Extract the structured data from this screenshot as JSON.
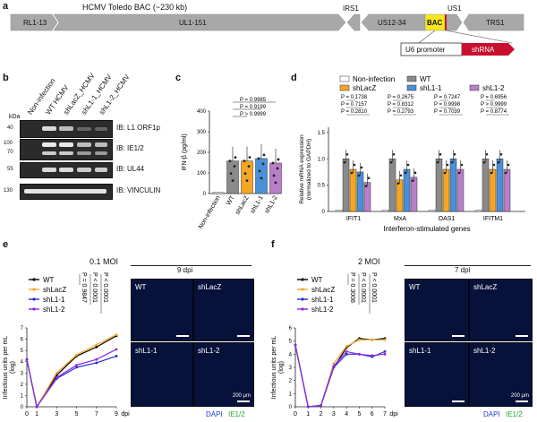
{
  "panel_a": {
    "letter": "a",
    "title": "HCMV Toledo BAC (~230 kb)",
    "segments": [
      "RL1-13",
      "UL1-151",
      "IRS1",
      "US12-34",
      "BAC",
      "US1",
      "TRS1"
    ],
    "promoter": "U6 promoter",
    "insert": "shRNA",
    "colors": {
      "genome": "#a8a8a8",
      "bac": "#f7e71c",
      "shrna": "#c8102e"
    }
  },
  "panel_b": {
    "letter": "b",
    "lanes": [
      "Non-infection",
      "WT HCMV",
      "shLacZ_HCMV",
      "shL1-1_HCMV",
      "shL1-2_HCMV"
    ],
    "kda_label": "kDa",
    "blots": [
      {
        "kda": [
          "40"
        ],
        "label": "IB: L1 ORF1p"
      },
      {
        "kda": [
          "100",
          "70"
        ],
        "label": "IB: IE1/2"
      },
      {
        "kda": [
          "55"
        ],
        "label": "IB: UL44"
      },
      {
        "kda": [
          "130"
        ],
        "label": "IB: VINCULIN"
      }
    ]
  },
  "panel_c": {
    "letter": "c",
    "chart_data": {
      "type": "bar",
      "ylabel": "IFN-β (pg/ml)",
      "ylim": [
        0,
        400
      ],
      "yticks": [
        "0",
        "100",
        "200",
        "300",
        "400"
      ],
      "categories": [
        "Non-infection",
        "WT",
        "shLacZ",
        "shL1-1",
        "shL1-2"
      ],
      "values": [
        5,
        158,
        158,
        170,
        148
      ],
      "colors": [
        "#ffffff",
        "#8a8a8a",
        "#f5a623",
        "#4a90d9",
        "#b97fc9"
      ],
      "pvalues": [
        "P = 0.9985",
        "P = 0.9199",
        "P > 0.9999"
      ]
    }
  },
  "panel_d": {
    "letter": "d",
    "legend": [
      "Non-infection",
      "WT",
      "shLacZ",
      "shL1-1",
      "shL1-2"
    ],
    "chart_data": {
      "type": "bar",
      "ylabel": "Relative mRNA expression (normalized to GAPDH)",
      "ylabel_line1": "Relative mRNA expression",
      "ylabel_line2": "(normalized to GAPDH)",
      "xlabel": "Interferon-stimulated genes",
      "ylim": [
        0,
        1.6
      ],
      "yticks": [
        "0",
        "0.5",
        "1.0",
        "1.5"
      ],
      "categories": [
        "IFIT1",
        "MxA",
        "OAS1",
        "IFITM1"
      ],
      "series": [
        {
          "name": "Non-infection",
          "color": "#ffffff",
          "values": [
            0.02,
            0.02,
            0.02,
            0.02
          ]
        },
        {
          "name": "WT",
          "color": "#8a8a8a",
          "values": [
            1.0,
            1.0,
            1.0,
            1.0
          ]
        },
        {
          "name": "shLacZ",
          "color": "#f5a623",
          "values": [
            0.8,
            0.6,
            0.8,
            0.8
          ]
        },
        {
          "name": "shL1-1",
          "color": "#4a90d9",
          "values": [
            0.75,
            0.8,
            1.0,
            1.0
          ]
        },
        {
          "name": "shL1-2",
          "color": "#b97fc9",
          "values": [
            0.55,
            0.65,
            0.8,
            0.8
          ]
        }
      ],
      "pvalues": [
        [
          "P = 0.1738",
          "P = 0.7157",
          "P = 0.2810"
        ],
        [
          "P = 0.2675",
          "P = 0.8312",
          "P = 0.2793"
        ],
        [
          "P = 0.7247",
          "P = 0.9998",
          "P = 0.7039"
        ],
        [
          "P = 0.6956",
          "P > 0.9999",
          "P = 0.8774"
        ]
      ]
    }
  },
  "panel_e": {
    "letter": "e",
    "moi": "0.1 MOI",
    "dpi": "9 dpi",
    "image_labels": [
      "WT",
      "shLacZ",
      "shL1-1",
      "shL1-2"
    ],
    "scale": "200 μm",
    "stain": {
      "dapi": "DAPI",
      "target": "IE1/2"
    },
    "chart_data": {
      "type": "line",
      "ylabel": "Infectious units per mL (log)",
      "ylabel_line1": "Infectious units per mL",
      "ylabel_line2": "(log)",
      "xlabel": "dpi",
      "x": [
        0,
        1,
        3,
        5,
        7,
        9
      ],
      "xticks": [
        "0",
        "1",
        "3",
        "5",
        "7",
        "9"
      ],
      "ylim": [
        0,
        7
      ],
      "yticks": [
        "0",
        "1",
        "2",
        "3",
        "4",
        "5",
        "6",
        "7"
      ],
      "series": [
        {
          "name": "WT",
          "color": "#000000",
          "values": [
            4.2,
            0.0,
            2.8,
            4.5,
            5.3,
            6.3
          ]
        },
        {
          "name": "shLacZ",
          "color": "#f5a623",
          "values": [
            4.2,
            0.0,
            3.0,
            4.6,
            5.5,
            6.4
          ]
        },
        {
          "name": "shL1-1",
          "color": "#2b2bd6",
          "values": [
            4.2,
            0.0,
            2.5,
            3.5,
            3.9,
            4.5
          ]
        },
        {
          "name": "shL1-2",
          "color": "#8a2be2",
          "values": [
            4.2,
            0.0,
            2.6,
            3.7,
            4.2,
            5.1
          ]
        }
      ],
      "pvalues": [
        "P = 0.9847",
        "P < 0.0001",
        "P < 0.0001"
      ]
    }
  },
  "panel_f": {
    "letter": "f",
    "moi": "2 MOI",
    "dpi": "7 dpi",
    "image_labels": [
      "WT",
      "shLacZ",
      "shL1-1",
      "shL1-2"
    ],
    "scale": "200 μm",
    "stain": {
      "dapi": "DAPI",
      "target": "IE1/2"
    },
    "chart_data": {
      "type": "line",
      "ylabel": "Infectious units per mL (log)",
      "ylabel_line1": "Infectious units per mL",
      "ylabel_line2": "(log)",
      "xlabel": "dpi",
      "x": [
        0,
        1,
        2,
        3,
        4,
        5,
        6,
        7
      ],
      "xticks": [
        "0",
        "1",
        "2",
        "3",
        "4",
        "5",
        "6",
        "7"
      ],
      "ylim": [
        0,
        6
      ],
      "yticks": [
        "0",
        "1",
        "2",
        "3",
        "4",
        "5",
        "6"
      ],
      "series": [
        {
          "name": "WT",
          "color": "#000000",
          "values": [
            4.7,
            0.0,
            0.1,
            3.0,
            4.5,
            5.2,
            5.1,
            5.2
          ]
        },
        {
          "name": "shLacZ",
          "color": "#f5a623",
          "values": [
            4.7,
            0.0,
            0.1,
            3.3,
            4.6,
            5.1,
            5.1,
            5.1
          ]
        },
        {
          "name": "shL1-1",
          "color": "#2b2bd6",
          "values": [
            4.7,
            0.0,
            0.1,
            3.0,
            4.0,
            4.0,
            3.8,
            4.2
          ]
        },
        {
          "name": "shL1-2",
          "color": "#8a2be2",
          "values": [
            4.7,
            0.0,
            0.1,
            3.1,
            4.2,
            4.0,
            3.9,
            4.0
          ]
        }
      ],
      "pvalues": [
        "P = 0.3008",
        "P < 0.0001",
        "P < 0.0001"
      ]
    }
  }
}
